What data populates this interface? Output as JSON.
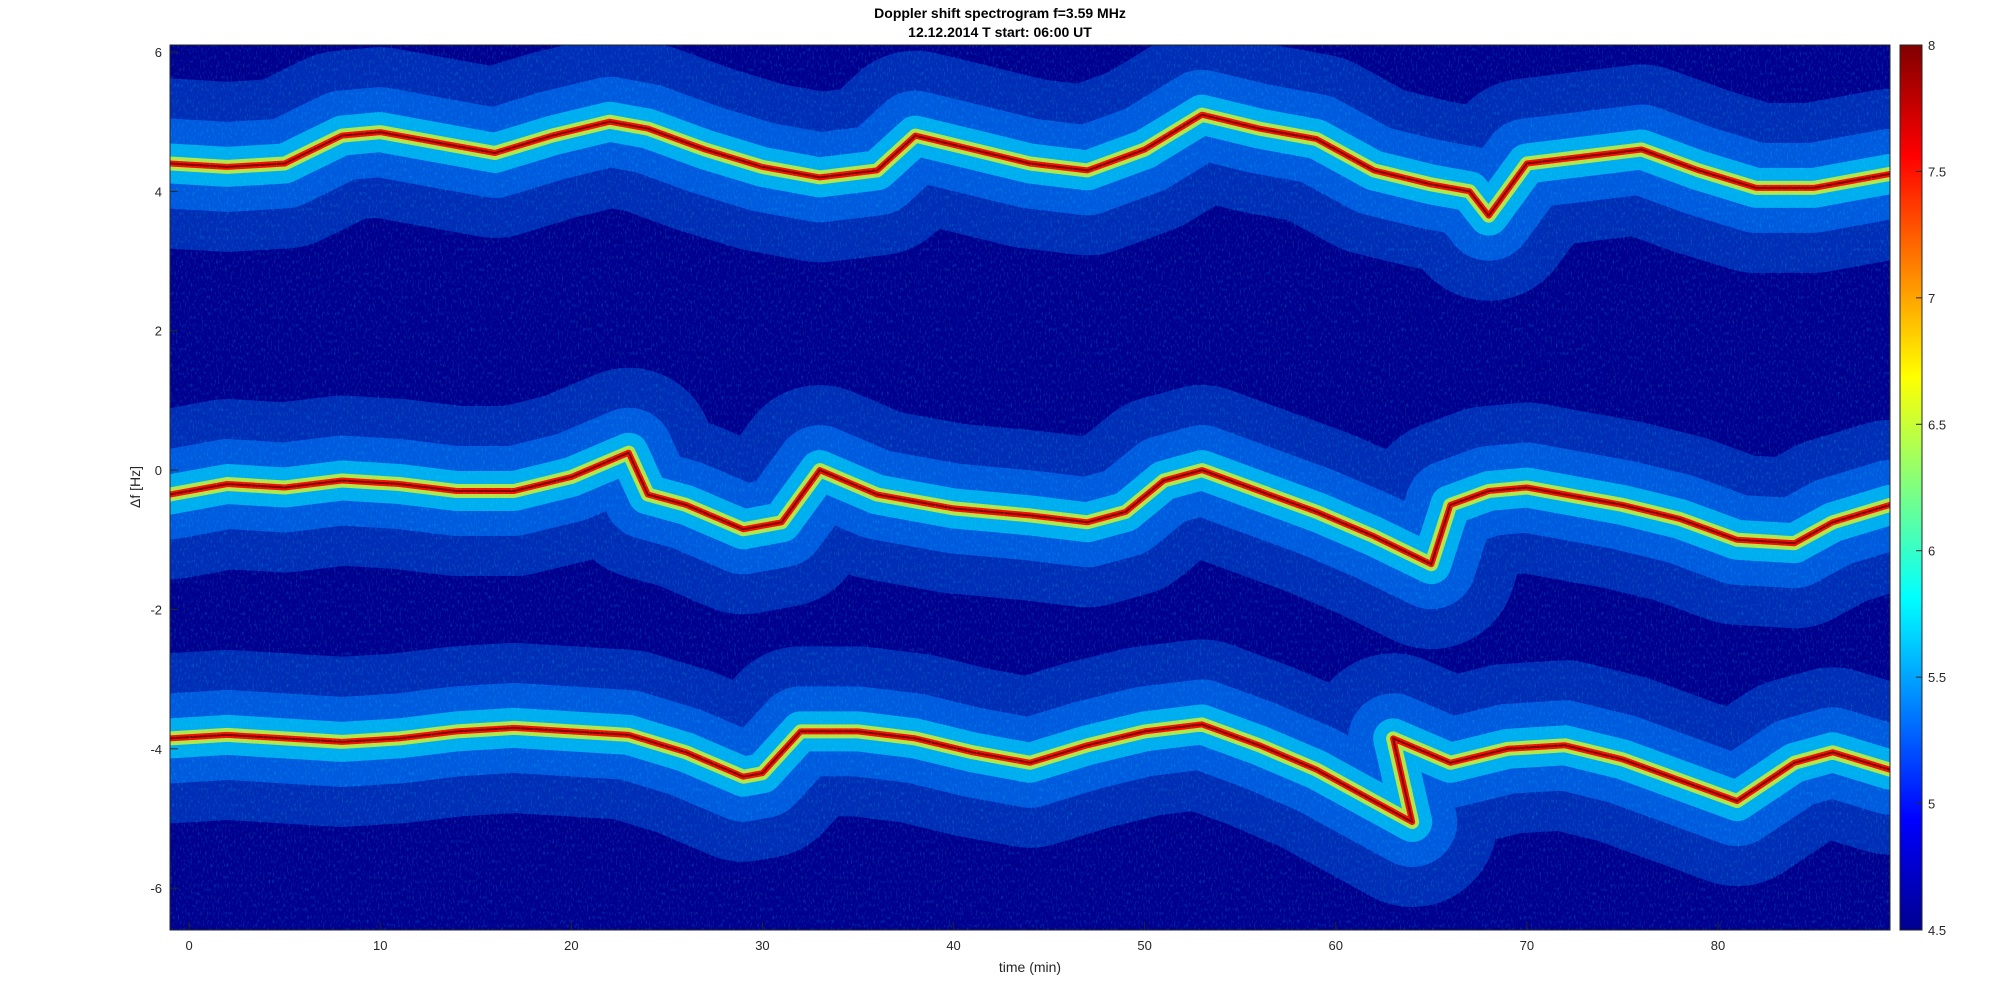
{
  "chart_data": {
    "type": "heatmap",
    "title": "Doppler shift spectrogram f=3.59 MHz",
    "subtitle": "12.12.2014    T start: 06:00 UT",
    "xlabel": "time (min)",
    "ylabel": "Δf [Hz]",
    "xlim": [
      -1,
      89
    ],
    "ylim": [
      -6.6,
      6.1
    ],
    "xticks": [
      0,
      10,
      20,
      30,
      40,
      50,
      60,
      70,
      80
    ],
    "yticks": [
      6,
      4,
      2,
      0,
      -2,
      -4,
      -6
    ],
    "colorbar": {
      "range": [
        4.5,
        8
      ],
      "ticks": [
        8,
        7.5,
        7,
        6.5,
        6,
        5.5,
        5,
        4.5
      ],
      "colormap": "jet"
    },
    "series": [
      {
        "x": [
          -1,
          2,
          5,
          8,
          10,
          13,
          16,
          19,
          22,
          24,
          27,
          30,
          33,
          36,
          38,
          41,
          44,
          47,
          50,
          53,
          56,
          59,
          62,
          65,
          67,
          68,
          70,
          73,
          76,
          79,
          82,
          85,
          89
        ],
        "y": [
          4.4,
          4.35,
          4.4,
          4.8,
          4.85,
          4.7,
          4.55,
          4.8,
          5.0,
          4.9,
          4.6,
          4.35,
          4.2,
          4.3,
          4.8,
          4.6,
          4.4,
          4.3,
          4.6,
          5.1,
          4.9,
          4.75,
          4.3,
          4.1,
          4.0,
          3.65,
          4.4,
          4.5,
          4.6,
          4.3,
          4.05,
          4.05,
          4.25
        ]
      },
      {
        "x": [
          -1,
          2,
          5,
          8,
          11,
          14,
          17,
          20,
          23,
          24,
          26,
          29,
          31,
          33,
          36,
          40,
          44,
          47,
          49,
          51,
          53,
          56,
          59,
          62,
          65,
          66,
          68,
          70,
          72,
          75,
          78,
          81,
          84,
          86,
          89
        ],
        "y": [
          -0.35,
          -0.2,
          -0.25,
          -0.15,
          -0.2,
          -0.3,
          -0.3,
          -0.1,
          0.25,
          -0.35,
          -0.5,
          -0.85,
          -0.75,
          0.0,
          -0.35,
          -0.55,
          -0.65,
          -0.75,
          -0.6,
          -0.15,
          0.0,
          -0.3,
          -0.6,
          -0.95,
          -1.35,
          -0.5,
          -0.3,
          -0.25,
          -0.35,
          -0.5,
          -0.7,
          -1.0,
          -1.05,
          -0.75,
          -0.5
        ]
      },
      {
        "x": [
          -1,
          2,
          5,
          8,
          11,
          14,
          17,
          20,
          23,
          26,
          29,
          30,
          32,
          35,
          38,
          41,
          44,
          47,
          50,
          53,
          56,
          59,
          62,
          64,
          63,
          66,
          69,
          72,
          75,
          78,
          81,
          84,
          86,
          89
        ],
        "y": [
          -3.85,
          -3.8,
          -3.85,
          -3.9,
          -3.85,
          -3.75,
          -3.7,
          -3.75,
          -3.8,
          -4.05,
          -4.4,
          -4.35,
          -3.75,
          -3.75,
          -3.85,
          -4.05,
          -4.2,
          -3.95,
          -3.75,
          -3.65,
          -3.95,
          -4.3,
          -4.75,
          -5.05,
          -3.85,
          -4.2,
          -4.0,
          -3.95,
          -4.15,
          -4.45,
          -4.75,
          -4.2,
          -4.05,
          -4.3
        ]
      }
    ],
    "color": {
      "background": "#00008f",
      "cool": "#0080ff",
      "cyan": "#00ffff",
      "yellow": "#ffff00",
      "hot": "#ff0000",
      "peak": "#800000"
    }
  }
}
